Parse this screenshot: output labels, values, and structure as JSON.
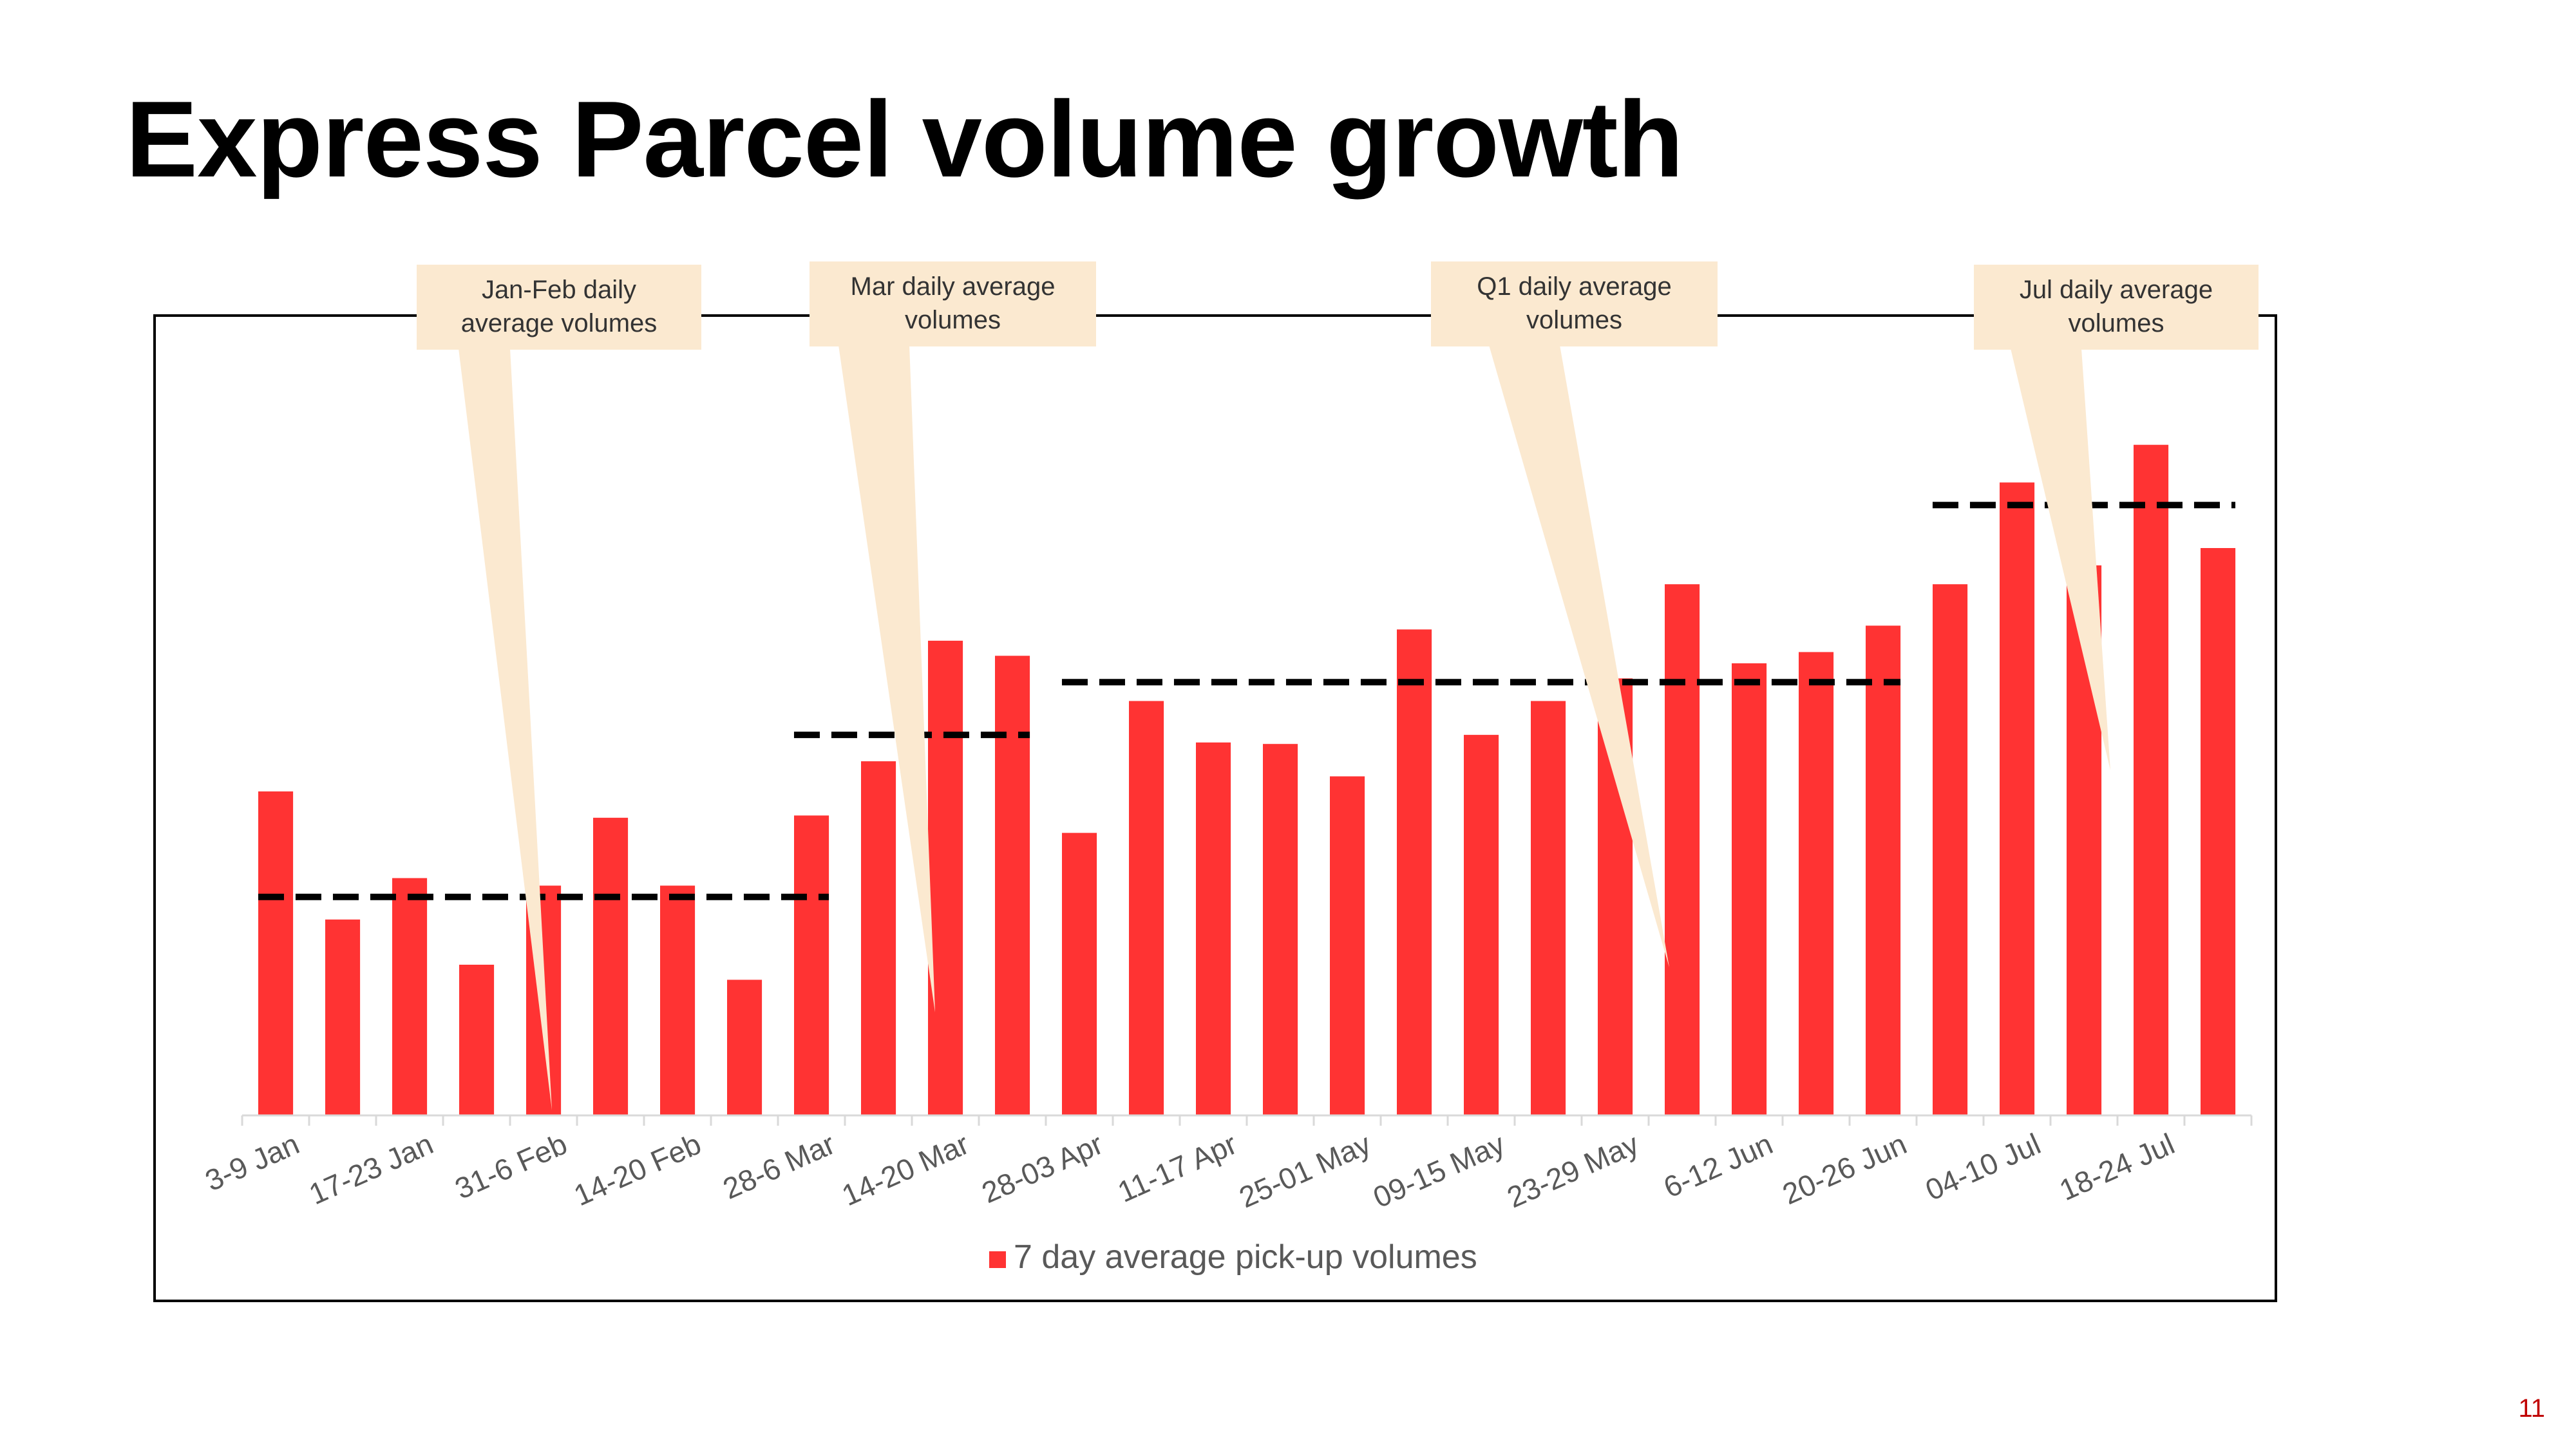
{
  "slide": {
    "title": "Express Parcel volume growth",
    "page_number": "11"
  },
  "chart_data": {
    "type": "bar",
    "title": "",
    "xlabel": "",
    "ylabel": "",
    "tick_labels": [
      "3-9 Jan",
      "17-23 Jan",
      "31-6 Feb",
      "14-20 Feb",
      "28-6 Mar",
      "14-20 Mar",
      "28-03 Apr",
      "11-17 Apr",
      "25-01 May",
      "09-15 May",
      "23-29 May",
      "6-12 Jun",
      "20-26 Jun",
      "04-10 Jul",
      "18-24 Jul"
    ],
    "series": [
      {
        "name": "7 day average pick-up volumes",
        "color": "#ff3333",
        "values": [
          43,
          26,
          31.5,
          20,
          30.5,
          39.5,
          30.5,
          18,
          39.8,
          47,
          63,
          61,
          37.5,
          55,
          49.5,
          49.3,
          45,
          64.5,
          50.5,
          55,
          58,
          70.5,
          60,
          61.5,
          65,
          70.5,
          84,
          73,
          89,
          75.3
        ]
      }
    ],
    "reference_lines": [
      {
        "label": "Jan-Feb daily average volumes",
        "value": 29,
        "from_index": 0,
        "to_index": 8
      },
      {
        "label": "Mar daily average volumes",
        "value": 50.5,
        "from_index": 8,
        "to_index": 11
      },
      {
        "label": "Q1 daily average volumes",
        "value": 57.5,
        "from_index": 12,
        "to_index": 24
      },
      {
        "label": "Jul daily average volumes",
        "value": 81,
        "from_index": 25,
        "to_index": 29
      }
    ],
    "ylim": [
      0,
      100
    ],
    "grid": false,
    "legend_position": "bottom-center"
  }
}
